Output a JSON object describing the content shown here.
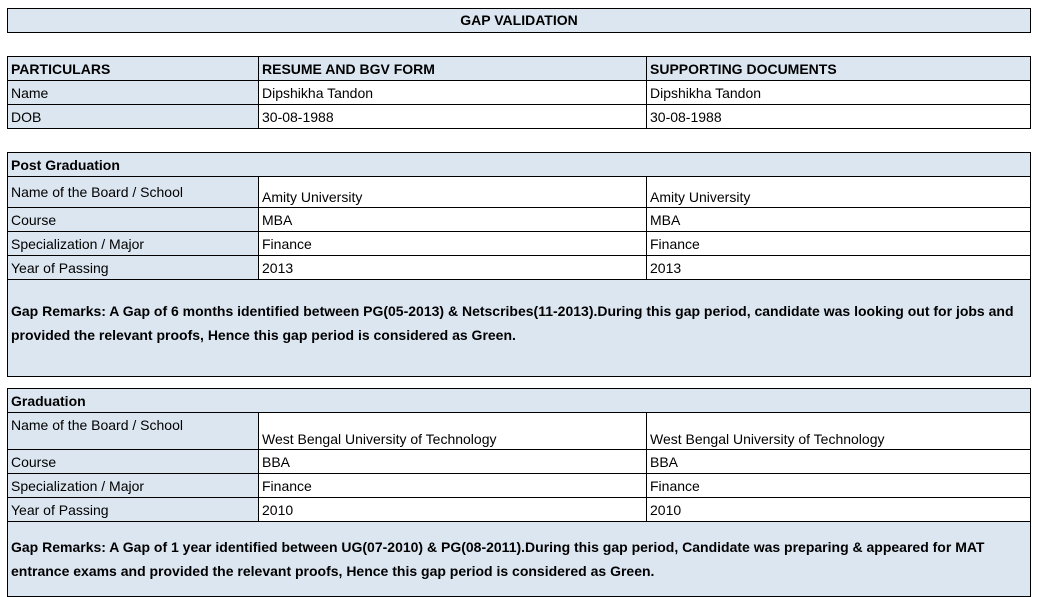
{
  "title": "GAP VALIDATION",
  "particulars": {
    "headers": [
      "PARTICULARS",
      "RESUME AND BGV FORM",
      "SUPPORTING DOCUMENTS"
    ],
    "rows": [
      [
        "Name",
        "Dipshikha Tandon",
        "Dipshikha Tandon"
      ],
      [
        "DOB",
        "30-08-1988",
        "30-08-1988"
      ]
    ]
  },
  "post_graduation": {
    "heading": "Post Graduation",
    "rows": [
      [
        "Name of the Board / School",
        "Amity University",
        "Amity University"
      ],
      [
        "Course",
        "MBA",
        "MBA"
      ],
      [
        "Specialization / Major",
        "Finance",
        "Finance"
      ],
      [
        "Year of Passing",
        "2013",
        "2013"
      ]
    ],
    "remarks": "Gap Remarks: A Gap of 6 months identified between PG(05-2013) & Netscribes(11-2013).During this gap period, candidate was looking out for jobs and provided the relevant proofs, Hence this gap period is considered as Green."
  },
  "graduation": {
    "heading": "Graduation",
    "rows": [
      [
        "Name of the Board / School",
        "West Bengal University of Technology",
        "West Bengal University of Technology"
      ],
      [
        "Course",
        "BBA",
        "BBA"
      ],
      [
        "Specialization / Major",
        "Finance",
        "Finance"
      ],
      [
        "Year of Passing",
        "2010",
        "2010"
      ]
    ],
    "remarks": "Gap Remarks: A Gap of 1 year identified between UG(07-2010) & PG(08-2011).During this gap period, Candidate was preparing & appeared for MAT entrance exams and provided the relevant proofs, Hence this gap period is considered as Green."
  }
}
